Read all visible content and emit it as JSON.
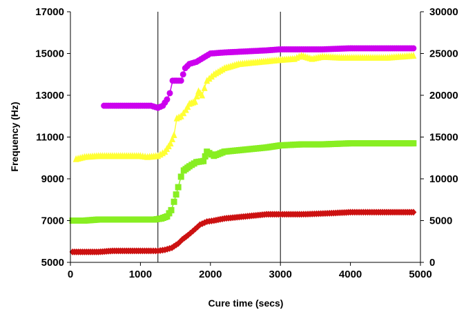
{
  "chart_data": {
    "type": "scatter",
    "title": "",
    "xlabel": "Cure time (secs)",
    "ylabel": "Frequency (Hz)",
    "xlim": [
      0,
      5000
    ],
    "ylim": [
      5000,
      17000
    ],
    "y2lim": [
      0,
      30000
    ],
    "x_ticks": [
      "0",
      "1000",
      "2000",
      "3000",
      "4000",
      "5000"
    ],
    "y_ticks": [
      "5000",
      "7000",
      "9000",
      "11000",
      "13000",
      "15000",
      "17000"
    ],
    "y2_ticks": [
      "0",
      "5000",
      "10000",
      "15000",
      "20000",
      "25000",
      "30000"
    ],
    "grid": false,
    "legend": "none",
    "vertical_lines_x": [
      1250,
      3000
    ],
    "colors": {
      "magenta": "#cc00ee",
      "yellow": "#ffff33",
      "green": "#88ee22",
      "red": "#cc1111"
    },
    "series": [
      {
        "marker": "circle",
        "color": "#cc00ee",
        "points": [
          [
            480,
            12500
          ],
          [
            600,
            12500
          ],
          [
            800,
            12500
          ],
          [
            1000,
            12500
          ],
          [
            1150,
            12500
          ],
          [
            1250,
            12400
          ],
          [
            1320,
            12500
          ],
          [
            1380,
            12800
          ],
          [
            1420,
            13100
          ],
          [
            1460,
            13700
          ],
          [
            1520,
            13700
          ],
          [
            1580,
            13700
          ],
          [
            1640,
            14300
          ],
          [
            1700,
            14500
          ],
          [
            1800,
            14600
          ],
          [
            1900,
            14800
          ],
          [
            2000,
            15000
          ],
          [
            2200,
            15050
          ],
          [
            2500,
            15100
          ],
          [
            2800,
            15150
          ],
          [
            3000,
            15200
          ],
          [
            3300,
            15200
          ],
          [
            3600,
            15200
          ],
          [
            4000,
            15250
          ],
          [
            4300,
            15250
          ],
          [
            4600,
            15250
          ],
          [
            4900,
            15250
          ]
        ]
      },
      {
        "marker": "triangle",
        "color": "#ffff33",
        "points": [
          [
            80,
            9950
          ],
          [
            200,
            10050
          ],
          [
            400,
            10100
          ],
          [
            600,
            10100
          ],
          [
            800,
            10100
          ],
          [
            1000,
            10100
          ],
          [
            1100,
            10050
          ],
          [
            1250,
            10100
          ],
          [
            1350,
            10300
          ],
          [
            1430,
            10700
          ],
          [
            1480,
            11100
          ],
          [
            1520,
            11900
          ],
          [
            1580,
            12000
          ],
          [
            1650,
            12300
          ],
          [
            1700,
            12600
          ],
          [
            1780,
            12700
          ],
          [
            1830,
            13200
          ],
          [
            1880,
            13000
          ],
          [
            1950,
            13700
          ],
          [
            2050,
            14000
          ],
          [
            2200,
            14300
          ],
          [
            2400,
            14500
          ],
          [
            2700,
            14600
          ],
          [
            3000,
            14700
          ],
          [
            3200,
            14750
          ],
          [
            3300,
            14900
          ],
          [
            3450,
            14750
          ],
          [
            3600,
            14850
          ],
          [
            3900,
            14800
          ],
          [
            4200,
            14800
          ],
          [
            4500,
            14800
          ],
          [
            4900,
            14900
          ]
        ]
      },
      {
        "marker": "square",
        "color": "#88ee22",
        "points": [
          [
            30,
            7000
          ],
          [
            200,
            7000
          ],
          [
            400,
            7050
          ],
          [
            600,
            7050
          ],
          [
            800,
            7050
          ],
          [
            1000,
            7050
          ],
          [
            1200,
            7050
          ],
          [
            1300,
            7100
          ],
          [
            1380,
            7200
          ],
          [
            1440,
            7500
          ],
          [
            1480,
            7900
          ],
          [
            1540,
            8600
          ],
          [
            1580,
            9100
          ],
          [
            1620,
            9400
          ],
          [
            1700,
            9600
          ],
          [
            1800,
            9800
          ],
          [
            1900,
            9850
          ],
          [
            1950,
            10300
          ],
          [
            2050,
            10100
          ],
          [
            2200,
            10300
          ],
          [
            2500,
            10400
          ],
          [
            2800,
            10500
          ],
          [
            3000,
            10600
          ],
          [
            3300,
            10650
          ],
          [
            3600,
            10650
          ],
          [
            4000,
            10700
          ],
          [
            4400,
            10700
          ],
          [
            4900,
            10700
          ]
        ]
      },
      {
        "marker": "diamond",
        "color": "#cc1111",
        "points": [
          [
            30,
            5500
          ],
          [
            200,
            5500
          ],
          [
            400,
            5500
          ],
          [
            600,
            5550
          ],
          [
            800,
            5550
          ],
          [
            1000,
            5550
          ],
          [
            1150,
            5550
          ],
          [
            1250,
            5550
          ],
          [
            1350,
            5600
          ],
          [
            1450,
            5700
          ],
          [
            1540,
            5900
          ],
          [
            1600,
            6100
          ],
          [
            1680,
            6300
          ],
          [
            1750,
            6500
          ],
          [
            1850,
            6800
          ],
          [
            1950,
            6950
          ],
          [
            2050,
            7000
          ],
          [
            2200,
            7100
          ],
          [
            2500,
            7200
          ],
          [
            2800,
            7300
          ],
          [
            3000,
            7300
          ],
          [
            3300,
            7300
          ],
          [
            3700,
            7350
          ],
          [
            4000,
            7400
          ],
          [
            4400,
            7400
          ],
          [
            4900,
            7400
          ]
        ]
      }
    ]
  }
}
